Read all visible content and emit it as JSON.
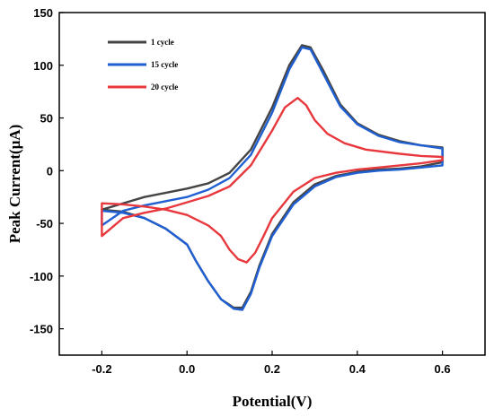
{
  "chart_data": {
    "type": "line",
    "xlabel": "Potential(V)",
    "ylabel": "Peak Current(μA)",
    "xlim": [
      -0.3,
      0.7
    ],
    "ylim": [
      -175,
      150
    ],
    "xticks": [
      -0.2,
      0.0,
      0.2,
      0.4,
      0.6
    ],
    "yticks": [
      -150,
      -100,
      -50,
      0,
      50,
      100,
      150
    ],
    "xtick_labels": [
      "-0.2",
      "0.0",
      "0.2",
      "0.4",
      "0.6"
    ],
    "ytick_labels": [
      "-150",
      "-100",
      "-50",
      "0",
      "50",
      "100",
      "150"
    ],
    "legend_position": "top-left",
    "series": [
      {
        "name": "1 cycle",
        "color": "#444444",
        "x": [
          -0.2,
          -0.1,
          0.0,
          0.05,
          0.1,
          0.15,
          0.2,
          0.24,
          0.27,
          0.29,
          0.32,
          0.36,
          0.4,
          0.45,
          0.5,
          0.55,
          0.6,
          0.6,
          0.55,
          0.5,
          0.45,
          0.4,
          0.35,
          0.3,
          0.25,
          0.2,
          0.17,
          0.15,
          0.13,
          0.11,
          0.08,
          0.05,
          0.02,
          0.0,
          -0.05,
          -0.1,
          -0.15,
          -0.2
        ],
        "y": [
          -37,
          -25,
          -17,
          -12,
          -2,
          20,
          60,
          100,
          119,
          117,
          95,
          63,
          45,
          34,
          28,
          24,
          22,
          8,
          4,
          2,
          1,
          -1,
          -5,
          -13,
          -30,
          -60,
          -90,
          -115,
          -130,
          -130,
          -122,
          -105,
          -85,
          -70,
          -55,
          -45,
          -39,
          -37
        ]
      },
      {
        "name": "15 cycle",
        "color": "#1f5fd1",
        "x": [
          -0.2,
          -0.15,
          -0.1,
          0.0,
          0.05,
          0.1,
          0.15,
          0.2,
          0.24,
          0.27,
          0.29,
          0.32,
          0.36,
          0.4,
          0.45,
          0.5,
          0.55,
          0.6,
          0.6,
          0.55,
          0.5,
          0.45,
          0.4,
          0.35,
          0.3,
          0.25,
          0.2,
          0.17,
          0.15,
          0.13,
          0.11,
          0.08,
          0.05,
          0.02,
          0.0,
          -0.05,
          -0.1,
          -0.15,
          -0.2
        ],
        "y": [
          -52,
          -38,
          -33,
          -25,
          -18,
          -7,
          15,
          55,
          96,
          117,
          115,
          92,
          61,
          44,
          33,
          27,
          24,
          21,
          5,
          3,
          1,
          0,
          -2,
          -6,
          -15,
          -32,
          -62,
          -92,
          -117,
          -132,
          -131,
          -122,
          -105,
          -85,
          -70,
          -55,
          -45,
          -40,
          -38
        ]
      },
      {
        "name": "20 cycle",
        "color": "#e8383d",
        "x": [
          -0.2,
          -0.15,
          -0.1,
          -0.05,
          0.0,
          0.05,
          0.1,
          0.15,
          0.2,
          0.23,
          0.26,
          0.28,
          0.3,
          0.33,
          0.37,
          0.42,
          0.5,
          0.55,
          0.6,
          0.6,
          0.55,
          0.5,
          0.45,
          0.4,
          0.35,
          0.3,
          0.25,
          0.2,
          0.18,
          0.16,
          0.14,
          0.12,
          0.1,
          0.08,
          0.05,
          0.0,
          -0.05,
          -0.1,
          -0.15,
          -0.2
        ],
        "y": [
          -62,
          -45,
          -40,
          -36,
          -30,
          -24,
          -15,
          5,
          38,
          60,
          69,
          62,
          48,
          35,
          26,
          20,
          16,
          14,
          13,
          10,
          7,
          5,
          3,
          1,
          -2,
          -7,
          -20,
          -45,
          -62,
          -78,
          -87,
          -84,
          -75,
          -62,
          -52,
          -42,
          -37,
          -34,
          -32,
          -31
        ]
      }
    ]
  }
}
